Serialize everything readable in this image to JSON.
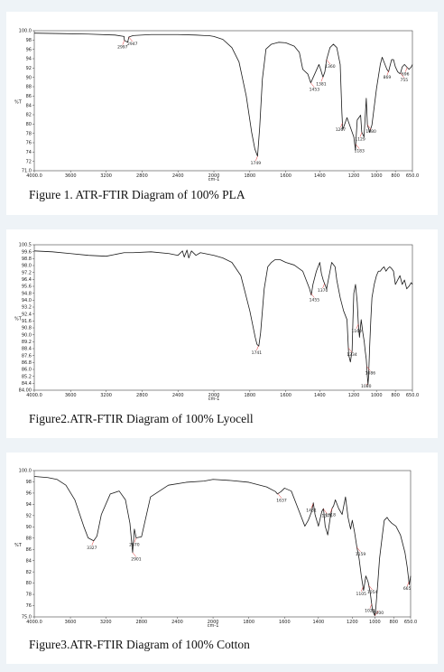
{
  "chart_data": [
    {
      "type": "line",
      "caption": "Figure 1. ATR-FTIR Diagram of 100% PLA",
      "ylabel": "%T",
      "xlabel": "cm-1",
      "xlim": [
        4000,
        650
      ],
      "ylim": [
        71,
        100
      ],
      "x_ticks": [
        "4000.0",
        "3600",
        "3200",
        "2800",
        "2400",
        "2000",
        "1800",
        "1600",
        "1400",
        "1200",
        "1000",
        "800",
        "650.0"
      ],
      "y_ticks": [
        "100.0",
        "98",
        "96",
        "94",
        "92",
        "90",
        "88",
        "86",
        "84",
        "82",
        "80",
        "78",
        "76",
        "74",
        "72",
        "71.0"
      ],
      "series": [
        {
          "x": [
            4000,
            3700,
            3400,
            3100,
            3000,
            2997,
            2960,
            2947,
            2900,
            2700,
            2400,
            2200,
            2100,
            2060,
            2000,
            1950,
            1900,
            1860,
            1820,
            1790,
            1772,
            1757,
            1745,
            1730,
            1710,
            1680,
            1640,
            1600,
            1550,
            1520,
            1500,
            1470,
            1453,
            1430,
            1405,
            1395,
            1385,
            1381,
            1370,
            1360,
            1340,
            1320,
            1300,
            1280,
            1270,
            1265,
            1240,
            1220,
            1200,
            1185,
            1183,
            1170,
            1140,
            1130,
            1110,
            1100,
            1090,
            1080,
            1060,
            1040,
            1000,
            960,
            940,
            920,
            890,
            872,
            860,
            840,
            820,
            800,
            780,
            760,
            755,
            740,
            720,
            700,
            680,
            660,
            650
          ],
          "y": [
            99.5,
            99.4,
            99.3,
            99.1,
            98.8,
            98,
            97.6,
            98.7,
            99,
            99.2,
            99.2,
            99.1,
            99,
            99,
            98.8,
            98.2,
            96.5,
            93.5,
            86.5,
            79,
            75.5,
            74,
            80,
            90,
            96.2,
            97.2,
            97.6,
            97.5,
            96.8,
            95.5,
            92,
            91,
            89.2,
            91,
            93,
            92,
            90.8,
            90.4,
            91.5,
            94,
            96.5,
            97.2,
            96.5,
            93,
            83,
            79.5,
            82,
            80,
            78,
            75.2,
            76.5,
            81.5,
            82.5,
            79,
            78,
            82,
            86,
            80.5,
            79,
            80.5,
            88,
            93,
            94.5,
            93.5,
            92,
            91.5,
            92.5,
            94,
            94,
            92.5,
            91.5,
            91.1,
            91.2,
            92.5,
            93,
            92.5,
            92,
            92.5,
            93
          ]
        }
      ],
      "annotations": [
        {
          "label": "2997",
          "x": 2997
        },
        {
          "label": "2947",
          "x": 2947
        },
        {
          "label": "1749",
          "x": 1757
        },
        {
          "label": "1453",
          "x": 1453
        },
        {
          "label": "1381",
          "x": 1381
        },
        {
          "label": "1360",
          "x": 1360
        },
        {
          "label": "1267",
          "x": 1267
        },
        {
          "label": "1183",
          "x": 1183
        },
        {
          "label": "1129",
          "x": 1129
        },
        {
          "label": "1080",
          "x": 1080
        },
        {
          "label": "869",
          "x": 869
        },
        {
          "label": "755",
          "x": 755
        },
        {
          "label": "696",
          "x": 696
        }
      ]
    },
    {
      "type": "line",
      "caption": "Figure2.ATR-FTIR Diagram of 100% Lyocell",
      "ylabel": "%T",
      "xlabel": "cm-1",
      "xlim": [
        4000,
        650
      ],
      "ylim": [
        84.0,
        100.5
      ],
      "x_ticks": [
        "4000.0",
        "3600",
        "3200",
        "2800",
        "2400",
        "2000",
        "1800",
        "1600",
        "1400",
        "1200",
        "1000",
        "800",
        "650.0"
      ],
      "y_ticks": [
        "100.5",
        "99.6",
        "98.8",
        "98.0",
        "97.2",
        "96.4",
        "95.6",
        "94.8",
        "94.0",
        "93.2",
        "92.4",
        "91.6",
        "90.8",
        "90.0",
        "89.2",
        "88.4",
        "87.6",
        "86.8",
        "86.0",
        "85.2",
        "84.4",
        "84.00"
      ],
      "series": [
        {
          "x": [
            4000,
            3800,
            3600,
            3400,
            3200,
            3000,
            2900,
            2700,
            2500,
            2400,
            2350,
            2330,
            2300,
            2280,
            2250,
            2200,
            2150,
            2100,
            2000,
            1950,
            1900,
            1850,
            1800,
            1780,
            1770,
            1760,
            1750,
            1740,
            1730,
            1720,
            1700,
            1680,
            1660,
            1630,
            1600,
            1550,
            1500,
            1480,
            1460,
            1450,
            1440,
            1420,
            1400,
            1390,
            1380,
            1370,
            1360,
            1345,
            1330,
            1310,
            1300,
            1280,
            1260,
            1240,
            1230,
            1220,
            1210,
            1205,
            1200,
            1185,
            1170,
            1160,
            1150,
            1135,
            1120,
            1108,
            1100,
            1090,
            1080,
            1075,
            1070,
            1060,
            1050,
            1040,
            1020,
            1000,
            980,
            960,
            940,
            920,
            900,
            880,
            860,
            840,
            820,
            800,
            780,
            760,
            740,
            720,
            700,
            680,
            660,
            650
          ],
          "y": [
            99.8,
            99.7,
            99.5,
            99.3,
            99.2,
            99.6,
            99.6,
            99.7,
            99.5,
            99.3,
            99.8,
            99.1,
            99.9,
            99.0,
            99.8,
            99.3,
            99.6,
            99.5,
            99.3,
            99.0,
            98.5,
            97.0,
            93.0,
            91.0,
            90.0,
            89.2,
            89.0,
            90.5,
            93.0,
            95.5,
            98.0,
            98.5,
            98.8,
            98.8,
            98.5,
            98.2,
            97.5,
            96.5,
            95.5,
            94.8,
            96.0,
            97.5,
            98.5,
            97.2,
            96.5,
            96.0,
            95.5,
            97.0,
            98.5,
            98.0,
            96.5,
            94.5,
            93.0,
            92.0,
            88.0,
            87.2,
            88.5,
            92.0,
            95.0,
            96.0,
            94.0,
            91.5,
            90.0,
            92.0,
            90.5,
            89.5,
            88.5,
            87.5,
            85.5,
            84.6,
            85.5,
            89.0,
            92.0,
            94.5,
            96.0,
            97.0,
            97.5,
            97.5,
            97.8,
            98.0,
            97.5,
            97.8,
            98.0,
            97.8,
            97.5,
            96.0,
            96.5,
            97.0,
            96.0,
            96.5,
            95.5,
            95.8,
            96.2,
            96.0
          ]
        }
      ],
      "annotations": [
        {
          "label": "1741",
          "x": 1752
        },
        {
          "label": "1455",
          "x": 1453
        },
        {
          "label": "1370",
          "x": 1372
        },
        {
          "label": "1234",
          "x": 1232
        },
        {
          "label": "1160",
          "x": 1160
        },
        {
          "label": "1086",
          "x": 1086
        },
        {
          "label": "1080",
          "x": 1075
        }
      ]
    },
    {
      "type": "line",
      "caption": "Figure3.ATR-FTIR Diagram of 100% Cotton",
      "ylabel": "%T",
      "xlabel": "cm-1",
      "xlim": [
        4000,
        650
      ],
      "ylim": [
        75.0,
        100.0
      ],
      "x_ticks": [
        "4000.0",
        "3600",
        "3200",
        "2800",
        "2400",
        "2000",
        "1800",
        "1600",
        "1400",
        "1200",
        "1000",
        "800",
        "650.0"
      ],
      "y_ticks": [
        "100.0",
        "98",
        "96",
        "94",
        "92",
        "90",
        "88",
        "86",
        "84",
        "82",
        "80",
        "78",
        "76",
        "75.0"
      ],
      "series": [
        {
          "x": [
            4000,
            3850,
            3750,
            3650,
            3550,
            3450,
            3400,
            3337,
            3300,
            3250,
            3150,
            3050,
            2980,
            2930,
            2900,
            2880,
            2860,
            2800,
            2700,
            2500,
            2300,
            2100,
            2000,
            1900,
            1800,
            1700,
            1650,
            1640,
            1620,
            1600,
            1560,
            1520,
            1480,
            1460,
            1440,
            1430,
            1420,
            1400,
            1380,
            1370,
            1360,
            1345,
            1330,
            1320,
            1310,
            1300,
            1280,
            1260,
            1250,
            1240,
            1225,
            1210,
            1200,
            1180,
            1160,
            1140,
            1120,
            1100,
            1080,
            1060,
            1040,
            1030,
            1020,
            1000,
            990,
            970,
            950,
            920,
            900,
            870,
            850,
            820,
            780,
            740,
            700,
            680,
            662,
            650
          ],
          "y": [
            99.0,
            98.8,
            98.5,
            97.5,
            95.0,
            90.5,
            88.5,
            88.0,
            88.8,
            92.5,
            96.0,
            96.5,
            95.0,
            91.0,
            86.0,
            90.0,
            88.5,
            88.7,
            95.5,
            97.5,
            98.0,
            98.2,
            98.5,
            98.3,
            98.0,
            97.2,
            96.4,
            96.0,
            96.4,
            97.0,
            96.5,
            93.5,
            90.5,
            91.5,
            93.0,
            94.5,
            92.5,
            90.5,
            93.0,
            93.5,
            90.5,
            89.0,
            92.0,
            93.5,
            94.0,
            95.0,
            93.5,
            92.5,
            94.0,
            95.5,
            92.0,
            90.0,
            91.5,
            89.5,
            87.0,
            85.0,
            82.0,
            79.5,
            82.0,
            81.0,
            79.0,
            77.5,
            76.0,
            75.2,
            76.5,
            80.5,
            85.0,
            89.0,
            91.5,
            92.0,
            91.5,
            91.0,
            90.5,
            89.0,
            86.0,
            83.5,
            80.5,
            82.0
          ]
        }
      ],
      "annotations": [
        {
          "label": "3327",
          "x": 3337
        },
        {
          "label": "2901",
          "x": 2900
        },
        {
          "label": "2870",
          "x": 2860
        },
        {
          "label": "1637",
          "x": 1637
        },
        {
          "label": "1431",
          "x": 1431
        },
        {
          "label": "1371",
          "x": 1371
        },
        {
          "label": "1318",
          "x": 1318
        },
        {
          "label": "1159",
          "x": 1159
        },
        {
          "label": "1105",
          "x": 1105
        },
        {
          "label": "1054",
          "x": 1054
        },
        {
          "label": "1028",
          "x": 1028
        },
        {
          "label": "1000",
          "x": 1000
        },
        {
          "label": "665",
          "x": 665
        }
      ]
    }
  ]
}
